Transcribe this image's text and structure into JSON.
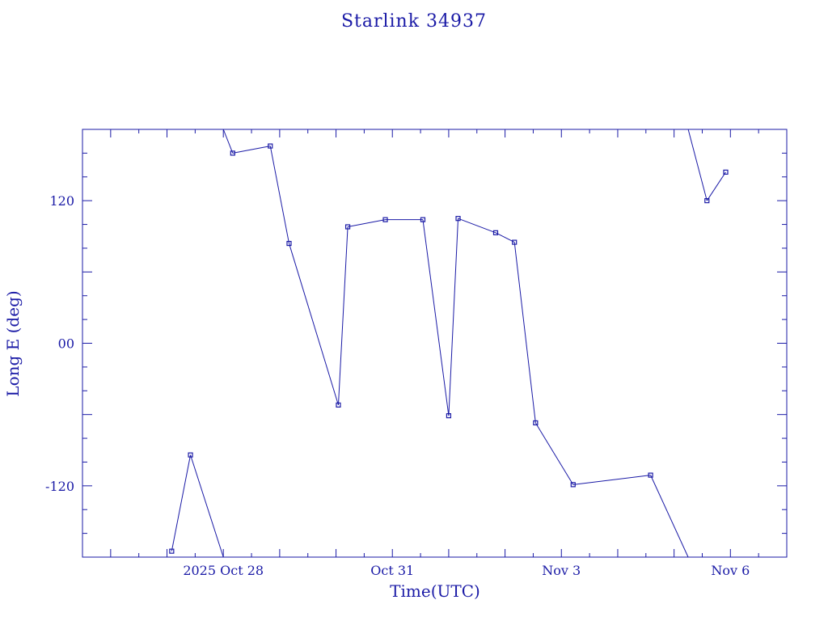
{
  "title": "Starlink 34937",
  "colors": {
    "ink": "#1a1aa6",
    "background": "#ffffff"
  },
  "chart_data": {
    "type": "line",
    "title": "Starlink 34937",
    "xlabel": "Time(UTC)",
    "ylabel": "Long E (deg)",
    "x_tick_labels": [
      "2025 Oct 28",
      "Oct 31",
      "Nov  3",
      "Nov  6"
    ],
    "x_ticks": [
      "2025-10-28",
      "2025-10-31",
      "2025-11-03",
      "2025-11-06"
    ],
    "xlim": [
      "2025-10-25 12:00",
      "2025-11-07 00:00"
    ],
    "ylim": [
      -180,
      180
    ],
    "y_ticks": [
      120,
      0,
      -120
    ],
    "y_tick_labels": [
      "120",
      "00",
      "-120"
    ],
    "grid": false,
    "marker": "square",
    "series": [
      {
        "values": [
          [
            "2025-10-27 02:00",
            -175
          ],
          [
            "2025-10-27 10:00",
            -94
          ],
          [
            "2025-10-28 00:00",
            -180
          ],
          [
            "2025-10-28 00:01",
            180
          ],
          [
            "2025-10-28 04:00",
            160
          ],
          [
            "2025-10-28 20:00",
            166
          ],
          [
            "2025-10-29 04:00",
            84
          ],
          [
            "2025-10-30 01:00",
            -52
          ],
          [
            "2025-10-30 05:00",
            98
          ],
          [
            "2025-10-30 21:00",
            104
          ],
          [
            "2025-10-31 13:00",
            104
          ],
          [
            "2025-11-01 00:00",
            -61
          ],
          [
            "2025-11-01 04:00",
            105
          ],
          [
            "2025-11-01 20:00",
            93
          ],
          [
            "2025-11-02 04:00",
            85
          ],
          [
            "2025-11-02 13:00",
            -67
          ],
          [
            "2025-11-03 05:00",
            -119
          ],
          [
            "2025-11-04 14:00",
            -111
          ],
          [
            "2025-11-05 06:00",
            -180
          ],
          [
            "2025-11-05 06:01",
            180
          ],
          [
            "2025-11-05 14:00",
            120
          ],
          [
            "2025-11-05 22:00",
            144
          ]
        ]
      }
    ]
  }
}
